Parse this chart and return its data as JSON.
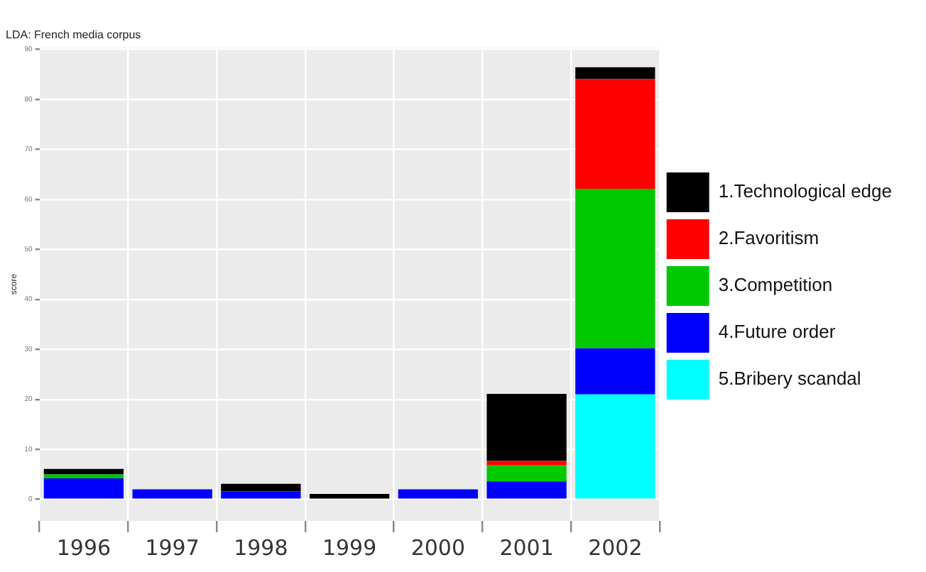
{
  "chart_data": {
    "type": "bar",
    "subtitle": "LDA: French media corpus",
    "ylabel": "score",
    "stacked": true,
    "categories": [
      "1996",
      "1997",
      "1998",
      "1999",
      "2000",
      "2001",
      "2002"
    ],
    "series": [
      {
        "name": "5.Bribery scandal",
        "color": "#00ffff",
        "values": [
          0,
          0,
          0,
          0,
          0,
          0,
          21.0
        ]
      },
      {
        "name": "4.Future order",
        "color": "#0000ff",
        "values": [
          4.2,
          2.0,
          1.6,
          0,
          2.0,
          3.6,
          9.2
        ]
      },
      {
        "name": "3.Competition",
        "color": "#00c800",
        "values": [
          0.8,
          0,
          0,
          0,
          0,
          3.2,
          31.9
        ]
      },
      {
        "name": "2.Favoritism",
        "color": "#ff0000",
        "values": [
          0,
          0,
          0,
          0,
          0,
          0.9,
          21.9
        ]
      },
      {
        "name": "1.Technological edge",
        "color": "#000000",
        "values": [
          1.1,
          0,
          1.5,
          1.1,
          0,
          13.4,
          2.4
        ]
      }
    ],
    "ylim": [
      -4.3,
      90.3
    ],
    "yticks": [
      0,
      10,
      20,
      30,
      40,
      50,
      60,
      70,
      80,
      90
    ],
    "grid": true,
    "legend": "right"
  }
}
